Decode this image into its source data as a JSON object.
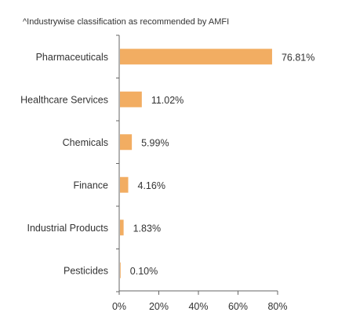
{
  "note": "^Industrywise classification as recommended by AMFI",
  "bar_color": "#f2ad62",
  "axis_color": "#666666",
  "chart_data": {
    "type": "bar",
    "orientation": "horizontal",
    "categories": [
      "Pharmaceuticals",
      "Healthcare Services",
      "Chemicals",
      "Finance",
      "Industrial Products",
      "Pesticides"
    ],
    "values": [
      76.81,
      11.02,
      5.99,
      4.16,
      1.83,
      0.1
    ],
    "value_labels": [
      "76.81%",
      "11.02%",
      "5.99%",
      "4.16%",
      "1.83%",
      "0.10%"
    ],
    "xlim": [
      0,
      80
    ],
    "xticks": [
      0,
      20,
      40,
      60,
      80
    ],
    "xtick_labels": [
      "0%",
      "20%",
      "40%",
      "60%",
      "80%"
    ],
    "title": "",
    "xlabel": "",
    "ylabel": "",
    "grid": false,
    "legend": "none"
  }
}
